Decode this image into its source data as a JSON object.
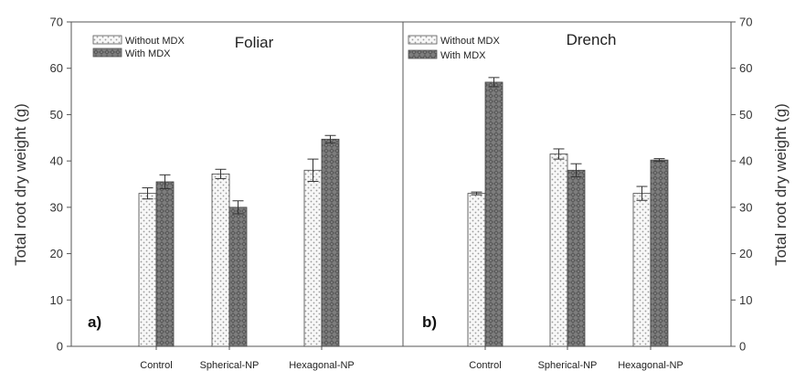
{
  "chart_data": [
    {
      "type": "bar",
      "panel_label": "a)",
      "title": "Foliar",
      "ylabel": "Total root dry weight (g)",
      "ylim": [
        0,
        70
      ],
      "yticks": [
        0,
        10,
        20,
        30,
        40,
        50,
        60,
        70
      ],
      "categories": [
        "Control",
        "Spherical-NP",
        "Hexagonal-NP"
      ],
      "series": [
        {
          "name": "Without MDX",
          "values": [
            33,
            37.2,
            38
          ],
          "errors": [
            1.2,
            1.0,
            2.4
          ]
        },
        {
          "name": "With MDX",
          "values": [
            35.5,
            30,
            44.7
          ],
          "errors": [
            1.5,
            1.4,
            0.8
          ]
        }
      ],
      "legend_position": "top-left"
    },
    {
      "type": "bar",
      "panel_label": "b)",
      "title": "Drench",
      "ylabel": "Total root dry weight (g)",
      "ylim": [
        0,
        70
      ],
      "yticks": [
        0,
        10,
        20,
        30,
        40,
        50,
        60,
        70
      ],
      "categories": [
        "Control",
        "Spherical-NP",
        "Hexagonal-NP"
      ],
      "series": [
        {
          "name": "Without MDX",
          "values": [
            33,
            41.5,
            33
          ],
          "errors": [
            0.3,
            1.1,
            1.5
          ]
        },
        {
          "name": "With MDX",
          "values": [
            57,
            38,
            40.2
          ],
          "errors": [
            1.0,
            1.4,
            0.3
          ]
        }
      ],
      "legend_position": "top-left"
    }
  ],
  "colors": {
    "without_mdx_fill": "#f7f7f7",
    "without_mdx_dot": "#9a9a9a",
    "with_mdx_fill": "#7d7d7d",
    "with_mdx_pattern": "#4f4f4f",
    "axis": "#555555"
  }
}
